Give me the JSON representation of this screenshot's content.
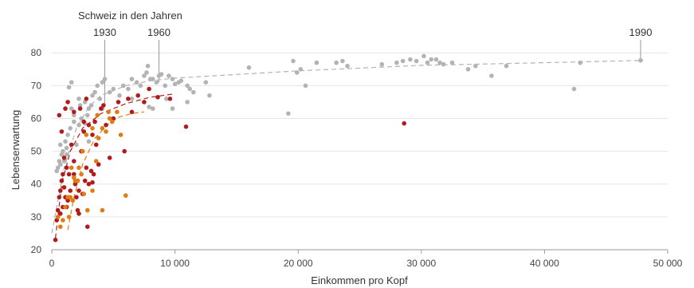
{
  "chart_data": {
    "type": "scatter",
    "title": "",
    "xlabel": "Einkommen pro Kopf",
    "ylabel": "Lebenserwartung",
    "xlim": [
      0,
      50000
    ],
    "ylim": [
      20,
      82
    ],
    "x_ticks": [
      0,
      10000,
      20000,
      30000,
      40000,
      50000
    ],
    "x_tick_labels": [
      "0",
      "10 000",
      "20 000",
      "30 000",
      "40 000",
      "50 000"
    ],
    "y_ticks": [
      20,
      30,
      40,
      50,
      60,
      70,
      80
    ],
    "y_tick_labels": [
      "20",
      "30",
      "40",
      "50",
      "60",
      "70",
      "80"
    ],
    "grid": true,
    "legend": "none",
    "colors": {
      "gray": "#b3b3b3",
      "red": "#b01c1c",
      "orange": "#e07c14",
      "trend_gray": "#b3b3b3",
      "trend_red": "#b01c1c",
      "trend_orange": "#e07c14"
    },
    "annotations": {
      "group_label": "Schweiz in den Jahren",
      "markers": [
        {
          "label": "1930",
          "x": 4300,
          "y": 64
        },
        {
          "label": "1960",
          "x": 8700,
          "y": 71
        },
        {
          "label": "1990",
          "x": 47800,
          "y": 77.7
        }
      ]
    },
    "series": [
      {
        "color_key": "gray",
        "points": [
          [
            400,
            44
          ],
          [
            500,
            45
          ],
          [
            600,
            47
          ],
          [
            700,
            46
          ],
          [
            800,
            49
          ],
          [
            900,
            50
          ],
          [
            700,
            52
          ],
          [
            1000,
            47
          ],
          [
            1200,
            51
          ],
          [
            1300,
            55
          ],
          [
            1500,
            57
          ],
          [
            1800,
            59
          ],
          [
            1600,
            63
          ],
          [
            2000,
            52
          ],
          [
            2200,
            66
          ],
          [
            2400,
            60
          ],
          [
            2700,
            65
          ],
          [
            3000,
            63
          ],
          [
            3300,
            67
          ],
          [
            3500,
            68
          ],
          [
            3700,
            70
          ],
          [
            3900,
            66
          ],
          [
            4100,
            71
          ],
          [
            4300,
            72
          ],
          [
            4700,
            68
          ],
          [
            5000,
            69
          ],
          [
            5500,
            67
          ],
          [
            5800,
            70
          ],
          [
            6200,
            69
          ],
          [
            6500,
            72
          ],
          [
            6900,
            71
          ],
          [
            7200,
            70
          ],
          [
            7500,
            73
          ],
          [
            7800,
            76
          ],
          [
            7700,
            74
          ],
          [
            8000,
            72
          ],
          [
            8200,
            72
          ],
          [
            8500,
            71
          ],
          [
            8700,
            73
          ],
          [
            8900,
            73.5
          ],
          [
            9200,
            70
          ],
          [
            9500,
            73
          ],
          [
            9800,
            72
          ],
          [
            10000,
            70.5
          ],
          [
            10300,
            71
          ],
          [
            10500,
            71.5
          ],
          [
            11000,
            70
          ],
          [
            11200,
            69
          ],
          [
            11500,
            68
          ],
          [
            12500,
            71
          ],
          [
            12800,
            67
          ],
          [
            11000,
            65
          ],
          [
            9800,
            63
          ],
          [
            9300,
            66
          ],
          [
            8200,
            63
          ],
          [
            7900,
            63.5
          ],
          [
            6500,
            66
          ],
          [
            16000,
            75.5
          ],
          [
            19200,
            61.5
          ],
          [
            19600,
            77.5
          ],
          [
            19900,
            74
          ],
          [
            20200,
            75
          ],
          [
            20600,
            70
          ],
          [
            21500,
            77
          ],
          [
            23100,
            77
          ],
          [
            23600,
            77.5
          ],
          [
            24000,
            76
          ],
          [
            26800,
            76.5
          ],
          [
            28000,
            77
          ],
          [
            28500,
            77.5
          ],
          [
            29100,
            78
          ],
          [
            29600,
            77.5
          ],
          [
            30200,
            79
          ],
          [
            30500,
            77
          ],
          [
            30800,
            78
          ],
          [
            31200,
            78
          ],
          [
            31500,
            77
          ],
          [
            31800,
            76.5
          ],
          [
            32500,
            77
          ],
          [
            33800,
            75
          ],
          [
            34400,
            76
          ],
          [
            35700,
            73
          ],
          [
            36900,
            76
          ],
          [
            42400,
            69
          ],
          [
            42900,
            77
          ],
          [
            47800,
            77.7
          ],
          [
            1400,
            69.5
          ],
          [
            1600,
            71
          ],
          [
            2300,
            64
          ],
          [
            2900,
            61
          ],
          [
            3200,
            64
          ],
          [
            4100,
            63
          ],
          [
            3000,
            53
          ],
          [
            2700,
            58.5
          ],
          [
            2200,
            58
          ],
          [
            1800,
            61
          ],
          [
            1100,
            53
          ],
          [
            1200,
            49
          ]
        ]
      },
      {
        "color_key": "red",
        "points": [
          [
            300,
            23
          ],
          [
            400,
            29
          ],
          [
            500,
            32
          ],
          [
            600,
            36
          ],
          [
            700,
            38
          ],
          [
            800,
            41
          ],
          [
            900,
            43
          ],
          [
            1000,
            39
          ],
          [
            1100,
            36
          ],
          [
            1200,
            33
          ],
          [
            700,
            31
          ],
          [
            900,
            33
          ],
          [
            1300,
            35
          ],
          [
            1500,
            38
          ],
          [
            1800,
            43
          ],
          [
            1900,
            40
          ],
          [
            2000,
            36
          ],
          [
            2100,
            32
          ],
          [
            2200,
            38
          ],
          [
            2500,
            37
          ],
          [
            2700,
            41
          ],
          [
            3000,
            40
          ],
          [
            3200,
            44
          ],
          [
            2800,
            45
          ],
          [
            3400,
            43
          ],
          [
            1800,
            47
          ],
          [
            1600,
            52
          ],
          [
            2400,
            50
          ],
          [
            2600,
            56
          ],
          [
            3000,
            58
          ],
          [
            3500,
            59
          ],
          [
            4000,
            63
          ],
          [
            4200,
            64
          ],
          [
            4400,
            58
          ],
          [
            4700,
            48
          ],
          [
            5000,
            60
          ],
          [
            5400,
            65
          ],
          [
            5900,
            50
          ],
          [
            6200,
            66
          ],
          [
            6500,
            62
          ],
          [
            7000,
            67
          ],
          [
            7500,
            65
          ],
          [
            7900,
            69
          ],
          [
            8600,
            66.5
          ],
          [
            9600,
            66
          ],
          [
            10900,
            57.5
          ],
          [
            28600,
            58.5
          ],
          [
            1100,
            63
          ],
          [
            1300,
            65
          ],
          [
            1800,
            62
          ],
          [
            2300,
            63
          ],
          [
            2800,
            66
          ],
          [
            3300,
            55
          ],
          [
            3600,
            52
          ],
          [
            3800,
            46
          ],
          [
            600,
            61
          ],
          [
            800,
            56
          ],
          [
            1000,
            48
          ],
          [
            1200,
            45
          ],
          [
            1400,
            43
          ],
          [
            2600,
            59
          ],
          [
            2900,
            27
          ],
          [
            2200,
            31
          ],
          [
            3300,
            40.5
          ]
        ]
      },
      {
        "color_key": "orange",
        "points": [
          [
            500,
            30
          ],
          [
            700,
            27
          ],
          [
            900,
            29
          ],
          [
            1100,
            33
          ],
          [
            1300,
            36
          ],
          [
            1500,
            36
          ],
          [
            1700,
            35
          ],
          [
            1900,
            41
          ],
          [
            1600,
            45
          ],
          [
            2100,
            41
          ],
          [
            2400,
            43
          ],
          [
            2600,
            37
          ],
          [
            2900,
            32
          ],
          [
            3300,
            38
          ],
          [
            3600,
            47
          ],
          [
            3800,
            54
          ],
          [
            4100,
            57
          ],
          [
            4400,
            56
          ],
          [
            4700,
            60
          ],
          [
            4900,
            59
          ],
          [
            5300,
            62
          ],
          [
            5600,
            55
          ],
          [
            6000,
            36.5
          ],
          [
            4100,
            32
          ],
          [
            3300,
            57
          ],
          [
            2800,
            55
          ],
          [
            2500,
            50
          ],
          [
            2200,
            45
          ],
          [
            1800,
            42
          ],
          [
            1400,
            30
          ],
          [
            3700,
            61
          ],
          [
            4600,
            62
          ]
        ]
      }
    ],
    "trend_lines": [
      {
        "color_key": "trend_gray",
        "points": [
          [
            0,
            25
          ],
          [
            1000,
            45
          ],
          [
            2000,
            57
          ],
          [
            3000,
            63.5
          ],
          [
            4000,
            67
          ],
          [
            6000,
            70
          ],
          [
            8000,
            71.5
          ],
          [
            10000,
            72.3
          ],
          [
            20000,
            74.5
          ],
          [
            30000,
            76.2
          ],
          [
            40000,
            77
          ],
          [
            48000,
            77.7
          ]
        ]
      },
      {
        "color_key": "trend_red",
        "points": [
          [
            300,
            23.5
          ],
          [
            800,
            40
          ],
          [
            1500,
            50
          ],
          [
            2500,
            57
          ],
          [
            4000,
            61.5
          ],
          [
            6000,
            64.5
          ],
          [
            8000,
            66.5
          ],
          [
            10000,
            67.5
          ]
        ]
      },
      {
        "color_key": "trend_orange",
        "points": [
          [
            1300,
            26
          ],
          [
            1800,
            36
          ],
          [
            2500,
            46
          ],
          [
            3500,
            54
          ],
          [
            4500,
            58
          ],
          [
            5500,
            60.5
          ],
          [
            6500,
            61.5
          ],
          [
            7500,
            62
          ]
        ]
      }
    ]
  }
}
